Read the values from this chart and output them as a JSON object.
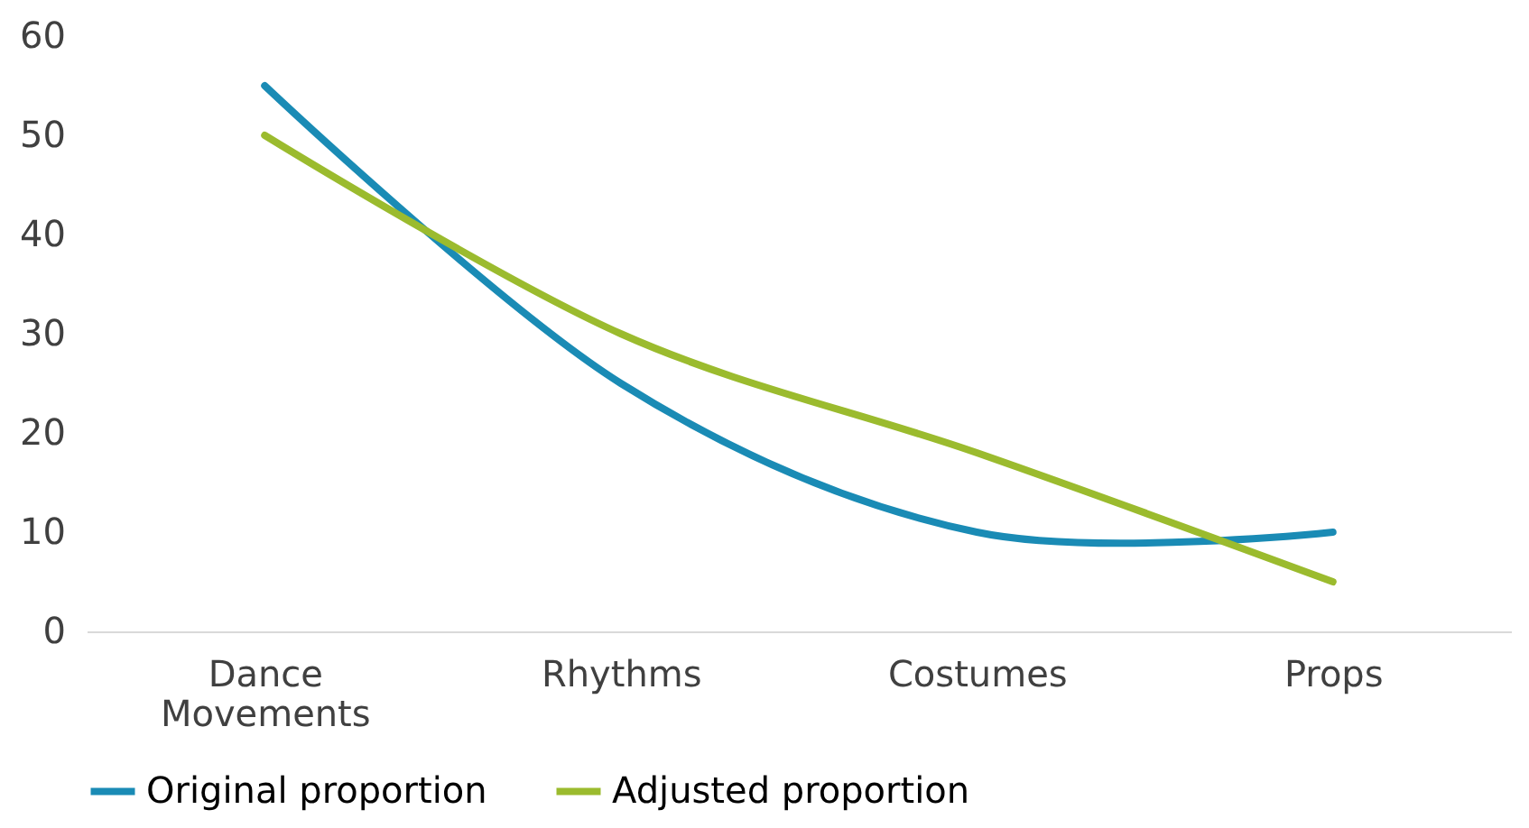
{
  "chart_data": {
    "type": "line",
    "categories": [
      "Dance Movements",
      "Rhythms",
      "Costumes",
      "Props"
    ],
    "series": [
      {
        "name": "Original proportion",
        "color": "#1a8bb5",
        "values": [
          55,
          25,
          10,
          10
        ]
      },
      {
        "name": "Adjusted proportion",
        "color": "#9bbb2e",
        "values": [
          50,
          30,
          18,
          5
        ]
      }
    ],
    "ylim": [
      0,
      60
    ],
    "yticks": [
      0,
      10,
      20,
      30,
      40,
      50,
      60
    ],
    "grid": false,
    "legend": "bottom",
    "marker": "none",
    "line_style": "solid"
  }
}
